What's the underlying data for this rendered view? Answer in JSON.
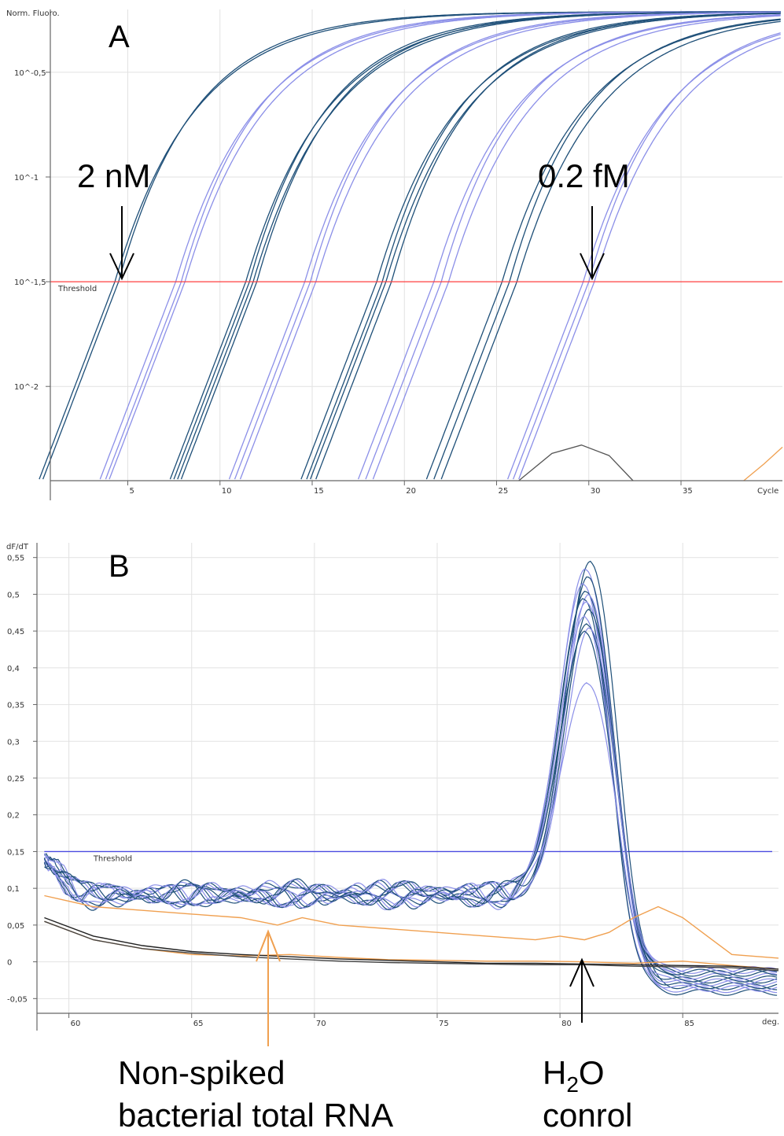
{
  "chart_data": [
    {
      "type": "line",
      "panel": "A",
      "ylabel": "Norm. Fluoro.",
      "xlabel": "Cycle",
      "y_scale": "log10",
      "ylim_log10": [
        -2.45,
        -0.2
      ],
      "xlim": [
        0.8,
        40.5
      ],
      "x_ticks": [
        5,
        10,
        15,
        20,
        25,
        30,
        35
      ],
      "x_tick_labels": [
        "5",
        "10",
        "15",
        "20",
        "25",
        "30",
        "35"
      ],
      "y_ticks_log10": [
        -0.5,
        -1,
        -1.5,
        -2
      ],
      "y_tick_labels": [
        "10^-0,5",
        "10^-1",
        "10^-1,5",
        "10^-2"
      ],
      "threshold": {
        "label": "Threshold",
        "log10_value": -1.5,
        "color": "#ff4040"
      },
      "series": [
        {
          "color": "#1e4f78",
          "ct": [
            4.3,
            4.5
          ]
        },
        {
          "color": "#8b8fe8",
          "ct": [
            7.6,
            7.9,
            8.1
          ]
        },
        {
          "color": "#1e4f78",
          "ct": [
            11.4,
            11.6,
            11.8,
            12.0
          ]
        },
        {
          "color": "#8b8fe8",
          "ct": [
            14.6,
            14.9,
            15.2
          ]
        },
        {
          "color": "#1e4f78",
          "ct": [
            18.5,
            18.8,
            19.0,
            19.3
          ]
        },
        {
          "color": "#8b8fe8",
          "ct": [
            21.6,
            22.0,
            22.4
          ]
        },
        {
          "color": "#1e4f78",
          "ct": [
            25.3,
            25.7,
            26.1
          ]
        },
        {
          "color": "#8b8fe8",
          "ct": [
            29.7,
            30.0,
            30.3
          ]
        }
      ],
      "baseline_curves": [
        {
          "color": "#555555",
          "x": [
            26.2,
            28,
            29.6,
            31.1,
            32.4
          ],
          "log10_y": [
            -2.45,
            -2.32,
            -2.28,
            -2.33,
            -2.45
          ]
        },
        {
          "color": "#f0a050",
          "x": [
            38.4,
            39.5,
            40.5
          ],
          "log10_y": [
            -2.45,
            -2.37,
            -2.29
          ]
        }
      ],
      "annotations": [
        {
          "text": "2 nM",
          "x": 4.4
        },
        {
          "text": "0.2 fM",
          "x": 30.0
        }
      ]
    },
    {
      "type": "line",
      "panel": "B",
      "ylabel": "dF/dT",
      "xlabel": "deg.",
      "xlim": [
        58.7,
        88.9
      ],
      "ylim": [
        -0.07,
        0.57
      ],
      "x_ticks": [
        60,
        65,
        70,
        75,
        80,
        85
      ],
      "x_tick_labels": [
        "60",
        "65",
        "70",
        "75",
        "80",
        "85"
      ],
      "y_ticks": [
        -0.05,
        0,
        0.05,
        0.1,
        0.15,
        0.2,
        0.25,
        0.3,
        0.35,
        0.4,
        0.45,
        0.5,
        0.55
      ],
      "y_tick_labels": [
        "-0,05",
        "0",
        "0,05",
        "0,1",
        "0,15",
        "0,2",
        "0,25",
        "0,3",
        "0,35",
        "0,4",
        "0,45",
        "0,5",
        "0,55"
      ],
      "threshold": {
        "label": "Threshold",
        "value": 0.15,
        "color": "#4a4ae0"
      },
      "peak_tm": 81.1,
      "peak_heights": [
        0.545,
        0.535,
        0.525,
        0.515,
        0.505,
        0.5,
        0.495,
        0.49,
        0.48,
        0.47,
        0.46,
        0.455,
        0.45,
        0.38
      ],
      "h2o_curves": [
        {
          "color": "#f0a050",
          "points": [
            [
              59,
              0.09
            ],
            [
              61,
              0.075
            ],
            [
              63,
              0.07
            ],
            [
              65,
              0.065
            ],
            [
              67,
              0.06
            ],
            [
              68.5,
              0.05
            ],
            [
              69.5,
              0.06
            ],
            [
              71,
              0.05
            ],
            [
              73,
              0.045
            ],
            [
              75,
              0.04
            ],
            [
              77,
              0.035
            ],
            [
              79,
              0.03
            ],
            [
              80,
              0.035
            ],
            [
              81,
              0.03
            ],
            [
              82,
              0.04
            ],
            [
              83,
              0.06
            ],
            [
              84,
              0.075
            ],
            [
              85,
              0.06
            ],
            [
              86,
              0.035
            ],
            [
              87,
              0.01
            ],
            [
              88.9,
              0.005
            ]
          ]
        },
        {
          "color": "#f0a050",
          "points": [
            [
              59,
              0.055
            ],
            [
              61,
              0.03
            ],
            [
              63,
              0.018
            ],
            [
              65,
              0.01
            ],
            [
              67,
              0.008
            ],
            [
              69,
              0.01
            ],
            [
              71,
              0.006
            ],
            [
              73,
              0.003
            ],
            [
              75,
              0.002
            ],
            [
              77,
              0.001
            ],
            [
              79,
              0.001
            ],
            [
              81,
              0.0
            ],
            [
              83,
              -0.002
            ],
            [
              85,
              0.001
            ],
            [
              87,
              -0.005
            ],
            [
              88.9,
              -0.01
            ]
          ]
        }
      ],
      "rna_curves": [
        {
          "color": "#222222",
          "points": [
            [
              59,
              0.06
            ],
            [
              61,
              0.035
            ],
            [
              63,
              0.022
            ],
            [
              65,
              0.014
            ],
            [
              67,
              0.01
            ],
            [
              69,
              0.007
            ],
            [
              71,
              0.004
            ],
            [
              73,
              0.002
            ],
            [
              75,
              0.0
            ],
            [
              77,
              -0.002
            ],
            [
              79,
              -0.002
            ],
            [
              81,
              -0.003
            ],
            [
              83,
              -0.004
            ],
            [
              85,
              -0.005
            ],
            [
              87,
              -0.006
            ],
            [
              88.9,
              -0.01
            ]
          ]
        },
        {
          "color": "#444444",
          "points": [
            [
              59,
              0.055
            ],
            [
              61,
              0.03
            ],
            [
              63,
              0.018
            ],
            [
              65,
              0.012
            ],
            [
              67,
              0.007
            ],
            [
              69,
              0.004
            ],
            [
              71,
              0.001
            ],
            [
              73,
              -0.001
            ],
            [
              75,
              -0.002
            ],
            [
              77,
              -0.003
            ],
            [
              79,
              -0.004
            ],
            [
              81,
              -0.004
            ],
            [
              83,
              -0.006
            ],
            [
              85,
              -0.007
            ],
            [
              87,
              -0.008
            ],
            [
              88.9,
              -0.012
            ]
          ]
        }
      ],
      "annotations": [
        {
          "text": "Non-spiked",
          "line": 1
        },
        {
          "text": "bacterial total RNA",
          "line": 2
        },
        {
          "text": "H",
          "sub": "2",
          "rest": "O"
        },
        {
          "text": "conrol"
        }
      ]
    }
  ],
  "labels": {
    "panel_a": "A",
    "panel_b": "B",
    "a_ylabel": "Norm. Fluoro.",
    "a_xlabel": "Cycle",
    "a_threshold": "Threshold",
    "a_annot_left": "2 nM",
    "a_annot_right": "0.2 fM",
    "b_ylabel": "dF/dT",
    "b_xlabel": "deg.",
    "b_threshold": "Threshold",
    "b_annot_rna_1": "Non-spiked",
    "b_annot_rna_2": "bacterial total RNA",
    "b_annot_h2o_h": "H",
    "b_annot_h2o_sub": "2",
    "b_annot_h2o_o": "O",
    "b_annot_h2o_2": "conrol"
  },
  "colors": {
    "dark_series": "#1e4f78",
    "light_series": "#8b8fe8",
    "threshold_a": "#ff4040",
    "threshold_b": "#4a4ae0",
    "orange": "#f0a050",
    "grid": "#e2e2e2"
  }
}
